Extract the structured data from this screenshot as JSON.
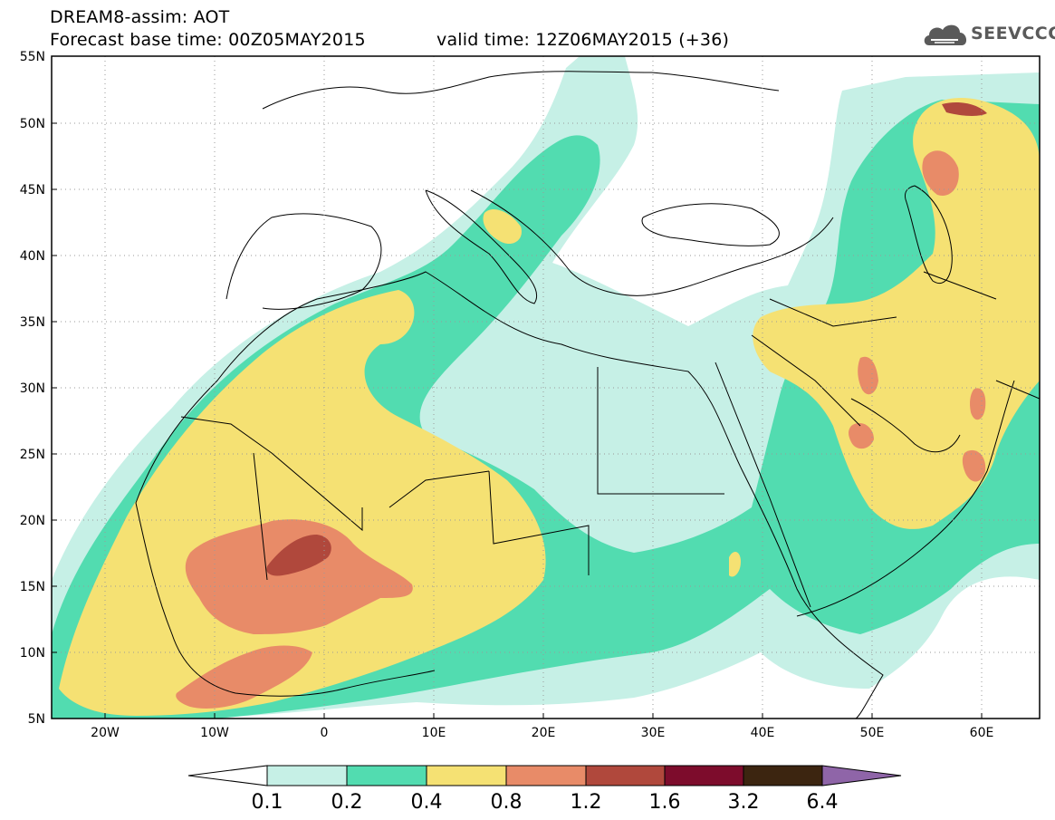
{
  "header": {
    "title_line1": "DREAM8-assim: AOT",
    "base_time": "Forecast base time: 00Z05MAY2015",
    "valid_time": "valid time: 12Z06MAY2015 (+36)",
    "logo_text": "SEEVCCC"
  },
  "map": {
    "lat_labels": [
      "55N",
      "50N",
      "45N",
      "40N",
      "35N",
      "30N",
      "25N",
      "20N",
      "15N",
      "10N",
      "5N"
    ],
    "lon_labels": [
      "20W",
      "10W",
      "0",
      "10E",
      "20E",
      "30E",
      "40E",
      "50E",
      "60E"
    ]
  },
  "colorbar": {
    "labels": [
      "0.1",
      "0.2",
      "0.4",
      "0.8",
      "1.2",
      "1.6",
      "3.2",
      "6.4"
    ],
    "colors": [
      "#ffffff",
      "#c6f0e6",
      "#52dcb0",
      "#f5e173",
      "#e88b68",
      "#b0483c",
      "#7d0c2c",
      "#3c2510",
      "#8f65a8"
    ]
  }
}
